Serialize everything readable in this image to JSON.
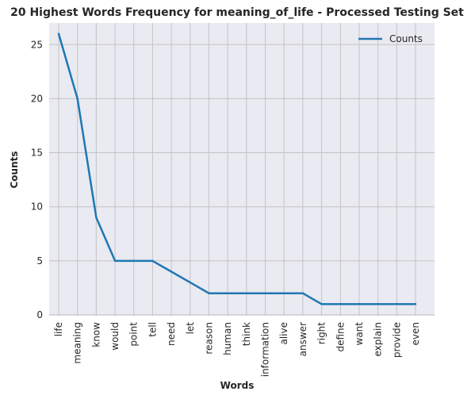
{
  "chart_data": {
    "type": "line",
    "title": "20 Highest Words Frequency for meaning_of_life - Processed Testing Set",
    "xlabel": "Words",
    "ylabel": "Counts",
    "categories": [
      "life",
      "meaning",
      "know",
      "would",
      "point",
      "tell",
      "need",
      "let",
      "reason",
      "human",
      "think",
      "information",
      "alive",
      "answer",
      "right",
      "define",
      "want",
      "explain",
      "provide",
      "even"
    ],
    "series": [
      {
        "name": "Counts",
        "values": [
          26,
          20,
          9,
          5,
          5,
          5,
          4,
          3,
          2,
          2,
          2,
          2,
          2,
          2,
          1,
          1,
          1,
          1,
          1,
          1
        ],
        "color": "#1f77b4"
      }
    ],
    "ylim": [
      0,
      27
    ],
    "yticks": [
      0,
      5,
      10,
      15,
      20,
      25
    ],
    "grid": true,
    "legend_position": "top-right",
    "background_color": "#eaeaf2",
    "grid_color": "#c4c4c4"
  }
}
